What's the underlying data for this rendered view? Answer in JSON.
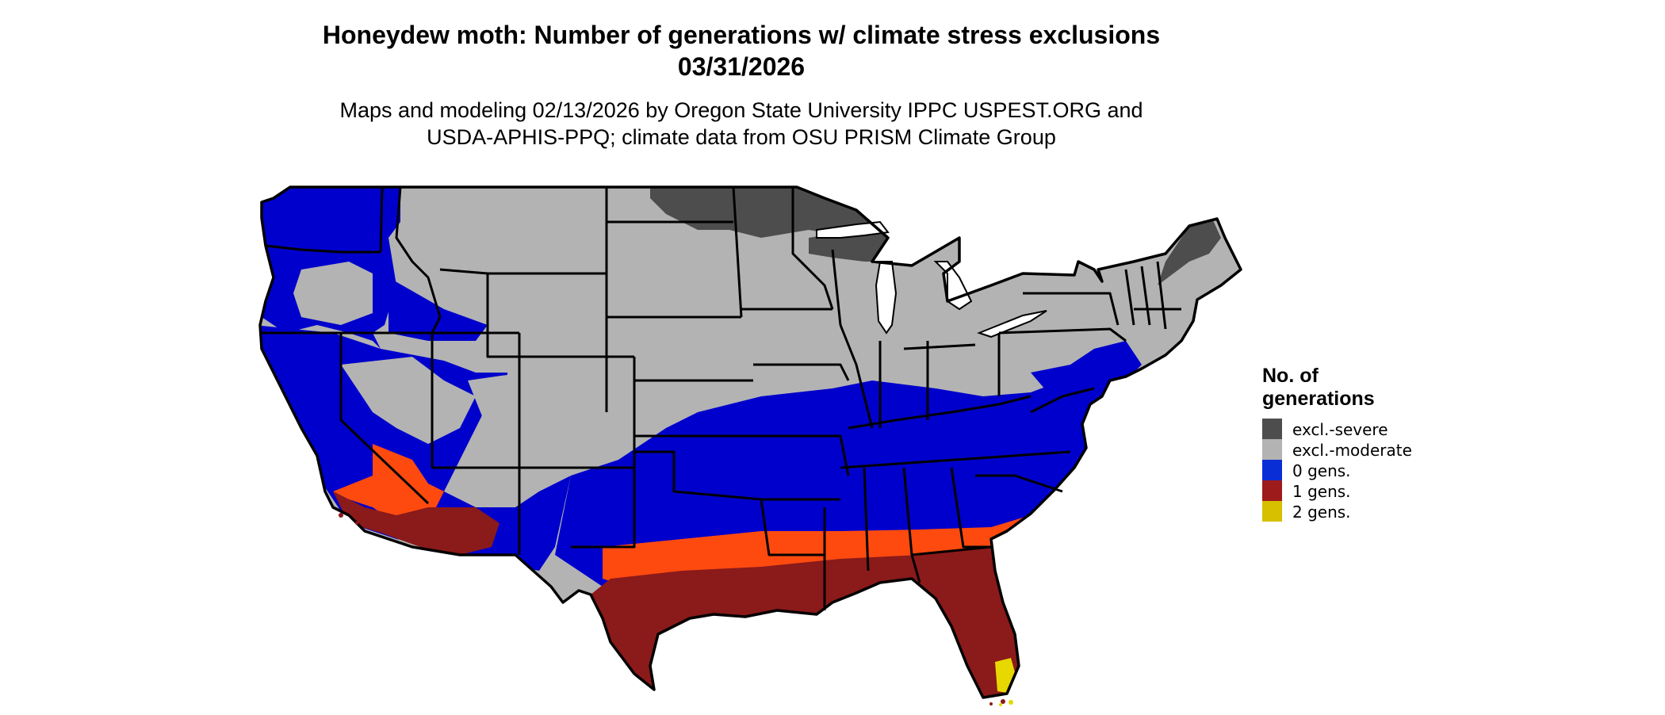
{
  "title": {
    "line1": "Honeydew moth: Number of generations w/ climate stress exclusions",
    "line2": "03/31/2026"
  },
  "subtitle": {
    "line1": "Maps and modeling 02/13/2026 by Oregon State University IPPC USPEST.ORG and",
    "line2": "USDA-APHIS-PPQ; climate data from OSU PRISM Climate Group"
  },
  "legend": {
    "title_line1": "No. of",
    "title_line2": "generations",
    "items": [
      {
        "label": "excl.-severe",
        "color": "#4d4d4d"
      },
      {
        "label": "excl.-moderate",
        "color": "#b3b3b3"
      },
      {
        "label": "0 gens.",
        "color": "#0a2ed6"
      },
      {
        "label": "1 gens.",
        "color": "#9e1b1b"
      },
      {
        "label": "2 gens.",
        "color": "#d6c000"
      }
    ]
  },
  "map_colors": {
    "excl_severe": "#4d4d4d",
    "excl_moderate": "#b3b3b3",
    "zero_gens": "#0000cc",
    "one_gen_dark": "#8b1a1a",
    "one_gen_light": "#ff4a0f",
    "two_gens": "#e6d800",
    "borders": "#000000",
    "water": "#ffffff"
  }
}
